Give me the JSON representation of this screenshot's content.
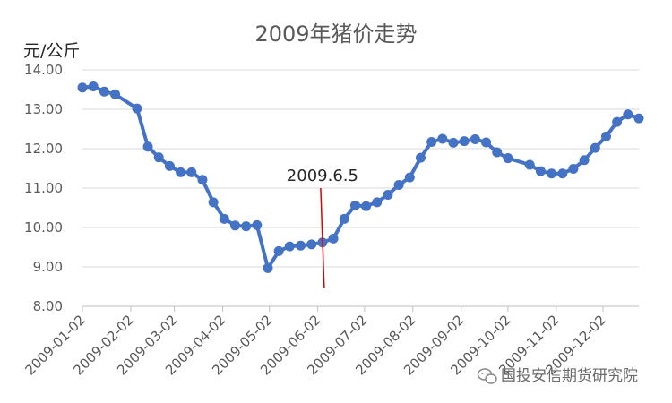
{
  "chart_data": {
    "type": "line",
    "title": "2009年猪价走势",
    "ylabel": "元/公斤",
    "xlabel": "",
    "ylim": [
      8.0,
      14.0
    ],
    "y_ticks": [
      "8.00",
      "9.00",
      "10.00",
      "11.00",
      "12.00",
      "13.00",
      "14.00"
    ],
    "x_ticks": [
      "2009-01-02",
      "2009-02-02",
      "2009-03-02",
      "2009-04-02",
      "2009-05-02",
      "2009-06-02",
      "2009-07-02",
      "2009-08-02",
      "2009-09-02",
      "2009-10-02",
      "2009-11-02",
      "2009-12-02"
    ],
    "grid": true,
    "legend": "none",
    "series_color": "#4472c4",
    "annotation": {
      "text": "2009.6.5",
      "x": "2009-06-05",
      "color": "#e00000"
    },
    "series": [
      {
        "x": [
          "2009-01-02",
          "2009-01-09",
          "2009-01-16",
          "2009-01-23",
          "2009-02-06",
          "2009-02-13",
          "2009-02-20",
          "2009-02-27",
          "2009-03-06",
          "2009-03-13",
          "2009-03-20",
          "2009-03-27",
          "2009-04-03",
          "2009-04-10",
          "2009-04-17",
          "2009-04-24",
          "2009-05-01",
          "2009-05-08",
          "2009-05-15",
          "2009-05-22",
          "2009-05-29",
          "2009-06-05",
          "2009-06-12",
          "2009-06-19",
          "2009-06-26",
          "2009-07-03",
          "2009-07-10",
          "2009-07-17",
          "2009-07-24",
          "2009-07-31",
          "2009-08-07",
          "2009-08-14",
          "2009-08-21",
          "2009-08-28",
          "2009-09-04",
          "2009-09-11",
          "2009-09-18",
          "2009-09-25",
          "2009-10-02",
          "2009-10-16",
          "2009-10-23",
          "2009-10-30",
          "2009-11-06",
          "2009-11-13",
          "2009-11-20",
          "2009-11-27",
          "2009-12-04",
          "2009-12-11",
          "2009-12-18",
          "2009-12-25"
        ],
        "values": [
          13.55,
          13.58,
          13.45,
          13.38,
          13.02,
          12.05,
          11.78,
          11.56,
          11.4,
          11.4,
          11.21,
          10.64,
          10.22,
          10.05,
          10.03,
          10.06,
          8.97,
          9.4,
          9.52,
          9.54,
          9.57,
          9.62,
          9.72,
          10.22,
          10.56,
          10.54,
          10.64,
          10.83,
          11.08,
          11.27,
          11.77,
          12.17,
          12.25,
          12.15,
          12.19,
          12.24,
          12.16,
          11.91,
          11.76,
          11.59,
          11.43,
          11.37,
          11.37,
          11.49,
          11.71,
          12.02,
          12.31,
          12.68,
          12.87,
          12.77
        ]
      }
    ]
  },
  "watermark": {
    "text": "国投安信期货研究院",
    "icon": "wechat-icon"
  }
}
